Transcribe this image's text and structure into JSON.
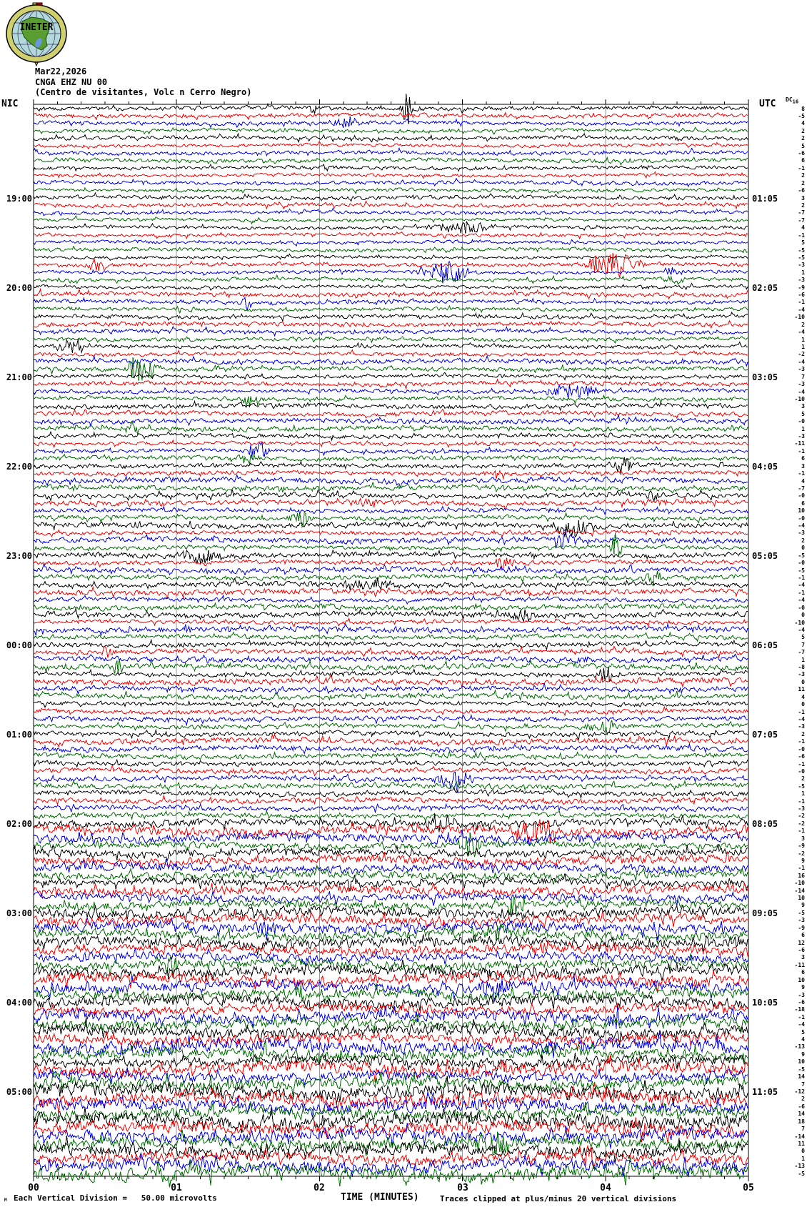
{
  "header": {
    "date": "Mar22,2026",
    "station": "CNGA EHZ NU 00",
    "location": "(Centro de visitantes, Volc n Cerro Negro)",
    "left_timezone": "NIC",
    "right_timezone": "UTC",
    "dc_column_header": "DC",
    "dc_column_header_sub": "16",
    "logo_text": "INETER"
  },
  "footer": {
    "tiny_mark": "M",
    "division_note": "Each Vertical Division =   50.00 microvolts",
    "axis_title": "TIME (MINUTES)",
    "clip_note": "Traces clipped at plus/minus 20 vertical divisions"
  },
  "colors": {
    "trace_cycle": [
      "#000000",
      "#ff0000",
      "#0000ee",
      "#006e00"
    ],
    "grid": "#999999",
    "border": "#000000",
    "logo_ring": "#cfcf6e",
    "logo_sea": "#b2d8dc",
    "logo_land": "#5a9e32",
    "logo_flag_red": "#dd0000"
  },
  "chart_data": {
    "type": "line",
    "title": "CNGA EHZ NU 00 helicorder seismogram",
    "xlabel": "TIME (MINUTES)",
    "x_range_minutes": [
      0,
      5
    ],
    "minor_ticks_per_minute": 6,
    "x_tick_labels": [
      "00",
      "01",
      "02",
      "03",
      "04",
      "05"
    ],
    "minutes_per_line": 5,
    "lines_per_hour": 12,
    "num_rows": 144,
    "first_row_local_time": "18:00",
    "hour_label_rows": [
      12,
      24,
      36,
      48,
      60,
      72,
      84,
      96,
      108,
      120,
      132
    ],
    "left_hour_labels": [
      "19:00",
      "20:00",
      "21:00",
      "22:00",
      "23:00",
      "00:00",
      "01:00",
      "02:00",
      "03:00",
      "04:00",
      "05:00"
    ],
    "right_hour_labels": [
      "01:05",
      "02:05",
      "03:05",
      "04:05",
      "05:05",
      "06:05",
      "07:05",
      "08:05",
      "09:05",
      "10:05",
      "11:05"
    ],
    "dc_values": [
      "8",
      "-5",
      "4",
      "2",
      "2",
      "5",
      "-6",
      "6",
      "-1",
      "2",
      "2",
      "-6",
      "3",
      "2",
      "-7",
      "-7",
      "4",
      "-1",
      "5",
      "-5",
      "-5",
      "-3",
      "1",
      "-3",
      "-9",
      "-6",
      "-1",
      "-4",
      "-10",
      "2",
      "-4",
      "1",
      "1",
      "-2",
      "-4",
      "-3",
      "7",
      "-3",
      "-4",
      "-10",
      "3",
      "5",
      "-0",
      "1",
      "-3",
      "-11",
      "-1",
      "6",
      "3",
      "-1",
      "4",
      "-7",
      "-0",
      "6",
      "10",
      "-0",
      "-4",
      "-3",
      "2",
      "0",
      "-5",
      "-0",
      "-5",
      "-1",
      "-4",
      "-1",
      "-4",
      "-0",
      "0",
      "-10",
      "-4",
      "5",
      "7",
      "-7",
      "1",
      "-8",
      "-3",
      "0",
      "11",
      "4",
      "0",
      "-1",
      "-4",
      "-3",
      "2",
      "-1",
      "-0",
      "-6",
      "-1",
      "-0",
      "2",
      "-5",
      "1",
      "-1",
      "-3",
      "-2",
      "-2",
      "-1",
      "3",
      "-9",
      "-2",
      "9",
      "-1",
      "16",
      "-10",
      "-14",
      "10",
      "9",
      "-5",
      "-3",
      "-9",
      "6",
      "12",
      "-6",
      "3",
      "-11",
      "6",
      "10",
      "9",
      "-3",
      "-6",
      "-18",
      "-1",
      "-4",
      "5",
      "4",
      "-13",
      "9",
      "10",
      "-5",
      "14",
      "7",
      "-12",
      "2",
      "-6",
      "14",
      "18",
      "7",
      "-14",
      "11",
      "0",
      "1",
      "-13",
      "-5"
    ],
    "clip_divisions": 20,
    "render": {
      "seed": 987654321,
      "amp_profile": [
        [
          0,
          3.0
        ],
        [
          24,
          3.7
        ],
        [
          48,
          4.1
        ],
        [
          72,
          4.5
        ],
        [
          96,
          6.6
        ],
        [
          108,
          8.0
        ],
        [
          120,
          9.6
        ],
        [
          132,
          10.6
        ]
      ],
      "bursts": [
        [
          0,
          570,
          30,
          5
        ],
        [
          0,
          438,
          12,
          3
        ],
        [
          2,
          487,
          9,
          14
        ],
        [
          16,
          650,
          11,
          28
        ],
        [
          21,
          860,
          22,
          22
        ],
        [
          21,
          138,
          16,
          7
        ],
        [
          22,
          625,
          16,
          20
        ],
        [
          22,
          940,
          11,
          7
        ],
        [
          23,
          945,
          9,
          8
        ],
        [
          26,
          345,
          12,
          5
        ],
        [
          32,
          100,
          11,
          16
        ],
        [
          35,
          193,
          19,
          10
        ],
        [
          35,
          215,
          12,
          7
        ],
        [
          38,
          800,
          12,
          22
        ],
        [
          39,
          350,
          12,
          9
        ],
        [
          43,
          185,
          10,
          8
        ],
        [
          46,
          360,
          17,
          9
        ],
        [
          47,
          345,
          11,
          8
        ],
        [
          48,
          870,
          15,
          9
        ],
        [
          49,
          690,
          11,
          9
        ],
        [
          52,
          915,
          10,
          7
        ],
        [
          53,
          510,
          9,
          11
        ],
        [
          55,
          420,
          13,
          10
        ],
        [
          56,
          800,
          15,
          20
        ],
        [
          59,
          862,
          21,
          5
        ],
        [
          58,
          795,
          13,
          13
        ],
        [
          60,
          280,
          11,
          20
        ],
        [
          61,
          705,
          11,
          9
        ],
        [
          63,
          915,
          11,
          8
        ],
        [
          64,
          520,
          9,
          25
        ],
        [
          68,
          730,
          9,
          11
        ],
        [
          70,
          265,
          9,
          7
        ],
        [
          73,
          150,
          11,
          7
        ],
        [
          75,
          165,
          11,
          6
        ],
        [
          76,
          850,
          12,
          9
        ],
        [
          83,
          845,
          13,
          12
        ],
        [
          90,
          635,
          19,
          13
        ],
        [
          96,
          620,
          15,
          13
        ],
        [
          97,
          750,
          20,
          22
        ],
        [
          99,
          660,
          15,
          11
        ],
        [
          104,
          495,
          15,
          7
        ],
        [
          107,
          720,
          15,
          11
        ],
        [
          110,
          370,
          13,
          9
        ],
        [
          111,
          700,
          17,
          13
        ],
        [
          113,
          760,
          15,
          11
        ],
        [
          115,
          240,
          13,
          10
        ],
        [
          118,
          690,
          17,
          13
        ],
        [
          119,
          420,
          15,
          9
        ],
        [
          122,
          860,
          15,
          9
        ],
        [
          126,
          240,
          15,
          10
        ],
        [
          131,
          75,
          20,
          7
        ],
        [
          134,
          600,
          13,
          9
        ],
        [
          137,
          900,
          15,
          10
        ],
        [
          139,
          690,
          24,
          18
        ],
        [
          141,
          830,
          13,
          9
        ]
      ]
    }
  }
}
